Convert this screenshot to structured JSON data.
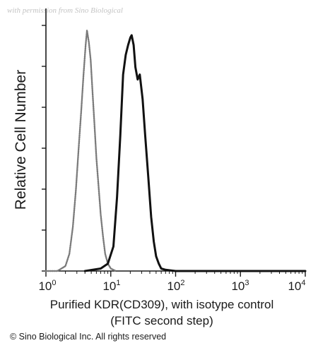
{
  "watermark": "with permission from Sino Biological",
  "chart_data": {
    "type": "line",
    "ylabel": "Relative Cell Number",
    "xlabel_line1": "Purified KDR(CD309), with isotype control",
    "xlabel_line2": "(FITC second step)",
    "x_scale": "log",
    "xlim": [
      1,
      10000
    ],
    "ylim": [
      0,
      1
    ],
    "x_ticks": [
      {
        "base": "10",
        "exp": "0"
      },
      {
        "base": "10",
        "exp": "1"
      },
      {
        "base": "10",
        "exp": "2"
      },
      {
        "base": "10",
        "exp": "3"
      },
      {
        "base": "10",
        "exp": "4"
      }
    ],
    "grid": false,
    "series": [
      {
        "style": "dotted-gray",
        "x": [
          1.0,
          1.5,
          2.0,
          2.3,
          2.6,
          2.9,
          3.2,
          3.5,
          3.8,
          4.1,
          4.3,
          4.6,
          4.9,
          5.2,
          5.6,
          6.0,
          6.5,
          7.0,
          7.6,
          8.2,
          9.0,
          10.0,
          11.0,
          12.0
        ],
        "y": [
          0.0,
          0.0,
          0.02,
          0.07,
          0.18,
          0.33,
          0.5,
          0.65,
          0.8,
          0.92,
          0.98,
          0.93,
          0.86,
          0.74,
          0.6,
          0.46,
          0.34,
          0.23,
          0.14,
          0.07,
          0.03,
          0.01,
          0.005,
          0.0
        ]
      },
      {
        "style": "solid-black",
        "x": [
          4.0,
          7.0,
          9.0,
          11.0,
          12.5,
          14.0,
          15.5,
          17.0,
          18.5,
          20.0,
          21.0,
          22.5,
          24.0,
          26.0,
          28.0,
          31.0,
          34.0,
          38.0,
          42.0,
          46.0,
          50.0,
          55.0,
          60.0,
          70.0,
          100.0,
          1000.0,
          10000.0
        ],
        "y": [
          0.0,
          0.01,
          0.03,
          0.1,
          0.3,
          0.55,
          0.8,
          0.88,
          0.92,
          0.95,
          0.96,
          0.92,
          0.83,
          0.78,
          0.8,
          0.7,
          0.55,
          0.38,
          0.22,
          0.12,
          0.06,
          0.03,
          0.01,
          0.005,
          0.0,
          0.0,
          0.0
        ]
      }
    ]
  },
  "copyright": "© Sino Biological Inc. All rights reserved"
}
